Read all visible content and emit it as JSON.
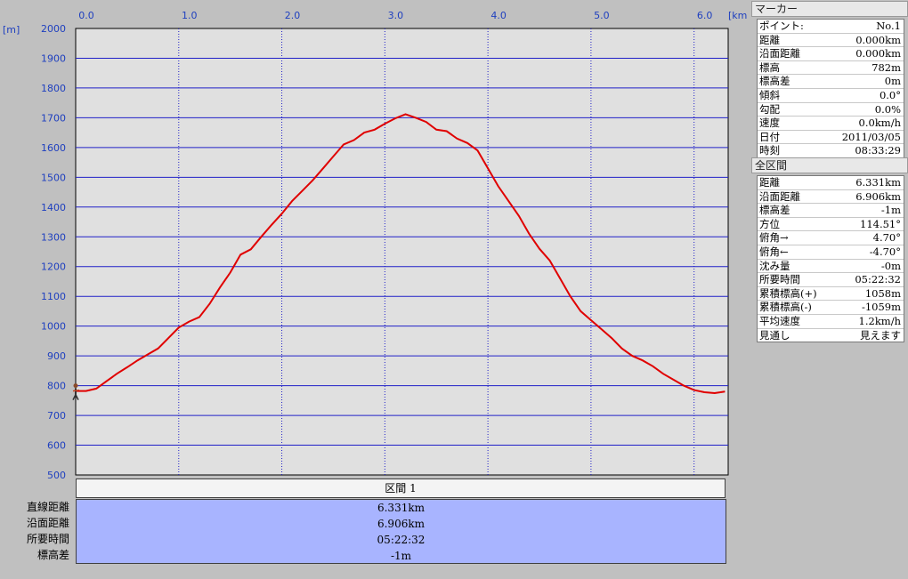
{
  "chart_data": {
    "type": "line",
    "xlabel": "[km]",
    "ylabel": "[m]",
    "xlim": [
      0,
      6.331
    ],
    "ylim": [
      500,
      2000
    ],
    "xticks": [
      "0.0",
      "1.0",
      "2.0",
      "3.0",
      "4.0",
      "5.0",
      "6.0"
    ],
    "yticks": [
      "2000",
      "1900",
      "1800",
      "1700",
      "1600",
      "1500",
      "1400",
      "1300",
      "1200",
      "1100",
      "1000",
      "900",
      "800",
      "700",
      "600",
      "500"
    ],
    "grid": true,
    "series": [
      {
        "color": "#e00000",
        "x": [
          0.0,
          0.1,
          0.2,
          0.3,
          0.4,
          0.5,
          0.6,
          0.7,
          0.8,
          0.9,
          1.0,
          1.1,
          1.2,
          1.3,
          1.4,
          1.5,
          1.6,
          1.7,
          1.8,
          1.9,
          2.0,
          2.1,
          2.2,
          2.3,
          2.4,
          2.5,
          2.6,
          2.7,
          2.8,
          2.9,
          3.0,
          3.1,
          3.2,
          3.3,
          3.4,
          3.5,
          3.6,
          3.7,
          3.8,
          3.9,
          4.0,
          4.1,
          4.2,
          4.3,
          4.4,
          4.5,
          4.6,
          4.7,
          4.8,
          4.9,
          5.0,
          5.1,
          5.2,
          5.3,
          5.4,
          5.5,
          5.6,
          5.7,
          5.8,
          5.9,
          6.0,
          6.1,
          6.2,
          6.3
        ],
        "y": [
          782,
          782,
          790,
          815,
          840,
          862,
          885,
          905,
          925,
          960,
          995,
          1015,
          1030,
          1075,
          1130,
          1180,
          1240,
          1258,
          1300,
          1340,
          1378,
          1420,
          1455,
          1490,
          1530,
          1570,
          1610,
          1625,
          1650,
          1660,
          1680,
          1698,
          1712,
          1700,
          1686,
          1660,
          1655,
          1630,
          1615,
          1590,
          1530,
          1470,
          1420,
          1370,
          1310,
          1260,
          1220,
          1160,
          1100,
          1050,
          1020,
          990,
          960,
          925,
          900,
          885,
          865,
          840,
          820,
          800,
          785,
          778,
          775,
          780
        ],
        "marker": {
          "x": 0.0,
          "y": 782,
          "icon": "walker-icon"
        }
      }
    ]
  },
  "section": {
    "header": "区間 1",
    "rows": [
      {
        "label": "直線距離",
        "value": "6.331km"
      },
      {
        "label": "沿面距離",
        "value": "6.906km"
      },
      {
        "label": "所要時間",
        "value": "05:22:32"
      },
      {
        "label": "標高差",
        "value": "-1m"
      }
    ]
  },
  "marker_panel": {
    "title": "マーカー",
    "rows": [
      {
        "label": "ポイント:",
        "value": "No.1"
      },
      {
        "label": "距離",
        "value": "0.000km"
      },
      {
        "label": "沿面距離",
        "value": "0.000km"
      },
      {
        "label": "標高",
        "value": "782m"
      },
      {
        "label": "標高差",
        "value": "0m"
      },
      {
        "label": "傾斜",
        "value": "0.0°"
      },
      {
        "label": "勾配",
        "value": "0.0%"
      },
      {
        "label": "速度",
        "value": "0.0km/h"
      },
      {
        "label": "日付",
        "value": "2011/03/05"
      },
      {
        "label": "時刻",
        "value": "08:33:29"
      }
    ]
  },
  "total_panel": {
    "title": "全区間",
    "rows": [
      {
        "label": "距離",
        "value": "6.331km"
      },
      {
        "label": "沿面距離",
        "value": "6.906km"
      },
      {
        "label": "標高差",
        "value": "-1m"
      },
      {
        "label": "方位",
        "value": "114.51°"
      },
      {
        "label": "俯角→",
        "value": "4.70°"
      },
      {
        "label": "俯角←",
        "value": "-4.70°"
      },
      {
        "label": "沈み量",
        "value": "-0m"
      },
      {
        "label": "所要時間",
        "value": "05:22:32"
      },
      {
        "label": "累積標高(+)",
        "value": "1058m"
      },
      {
        "label": "累積標高(-)",
        "value": "-1059m"
      },
      {
        "label": "平均速度",
        "value": "1.2km/h"
      },
      {
        "label": "見通し",
        "value": "見えます"
      }
    ]
  }
}
